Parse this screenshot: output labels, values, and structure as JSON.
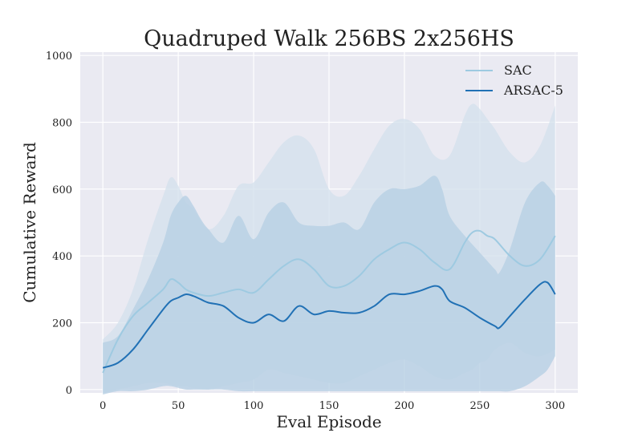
{
  "chart_data": {
    "type": "line",
    "title": "Quadruped Walk 256BS 2x256HS",
    "xlabel": "Eval Episode",
    "ylabel": "Cumulative Reward",
    "xlim": [
      -15,
      315
    ],
    "ylim": [
      -10,
      1010
    ],
    "xticks": [
      0,
      50,
      100,
      150,
      200,
      250,
      300
    ],
    "yticks": [
      0,
      200,
      400,
      600,
      800,
      1000
    ],
    "grid": true,
    "legend_position": "top-right",
    "background_color": "#EAEAF2",
    "series": [
      {
        "name": "SAC",
        "color": "#9ECAE1",
        "band_color": "#D3E0EC",
        "x": [
          0,
          10,
          20,
          30,
          40,
          45,
          50,
          55,
          60,
          70,
          80,
          90,
          100,
          110,
          120,
          130,
          140,
          150,
          160,
          170,
          180,
          190,
          200,
          210,
          220,
          230,
          240,
          245,
          250,
          255,
          260,
          270,
          280,
          290,
          300
        ],
        "mean": [
          50,
          150,
          220,
          260,
          300,
          330,
          320,
          300,
          290,
          280,
          290,
          300,
          290,
          330,
          370,
          390,
          360,
          310,
          310,
          340,
          390,
          420,
          440,
          420,
          380,
          360,
          440,
          470,
          475,
          460,
          450,
          400,
          370,
          390,
          460
        ],
        "upper": [
          150,
          200,
          300,
          450,
          580,
          635,
          610,
          560,
          540,
          480,
          520,
          610,
          620,
          680,
          740,
          760,
          720,
          600,
          580,
          640,
          720,
          790,
          810,
          780,
          700,
          700,
          820,
          855,
          840,
          810,
          780,
          710,
          680,
          730,
          850
        ],
        "lower": [
          -10,
          0,
          10,
          20,
          20,
          15,
          10,
          10,
          5,
          0,
          10,
          20,
          30,
          60,
          50,
          40,
          30,
          20,
          20,
          40,
          60,
          80,
          90,
          70,
          40,
          30,
          50,
          60,
          80,
          90,
          120,
          140,
          110,
          100,
          120
        ]
      },
      {
        "name": "ARSAC-5",
        "color": "#2171B5",
        "band_color": "#B7CFE4",
        "x": [
          0,
          10,
          20,
          30,
          40,
          45,
          50,
          55,
          60,
          65,
          70,
          80,
          90,
          100,
          110,
          120,
          130,
          140,
          150,
          160,
          170,
          180,
          190,
          200,
          210,
          220,
          225,
          230,
          240,
          250,
          260,
          263,
          270,
          280,
          290,
          295,
          300
        ],
        "mean": [
          65,
          80,
          120,
          180,
          240,
          265,
          275,
          285,
          280,
          270,
          260,
          250,
          215,
          200,
          225,
          205,
          250,
          225,
          235,
          230,
          230,
          250,
          285,
          285,
          295,
          310,
          300,
          265,
          245,
          215,
          190,
          185,
          220,
          270,
          315,
          320,
          285
        ],
        "upper": [
          140,
          160,
          240,
          330,
          440,
          520,
          560,
          580,
          550,
          510,
          480,
          440,
          520,
          450,
          530,
          560,
          500,
          490,
          490,
          500,
          480,
          560,
          600,
          600,
          610,
          640,
          600,
          520,
          460,
          410,
          360,
          350,
          420,
          560,
          620,
          610,
          580
        ],
        "lower": [
          -15,
          -5,
          -5,
          0,
          10,
          10,
          5,
          0,
          0,
          0,
          0,
          0,
          -5,
          -5,
          -5,
          -5,
          -5,
          -5,
          -5,
          -5,
          -5,
          -5,
          -5,
          -5,
          -5,
          -5,
          -5,
          -5,
          -5,
          -5,
          -5,
          -5,
          -5,
          10,
          40,
          60,
          100
        ]
      }
    ]
  }
}
